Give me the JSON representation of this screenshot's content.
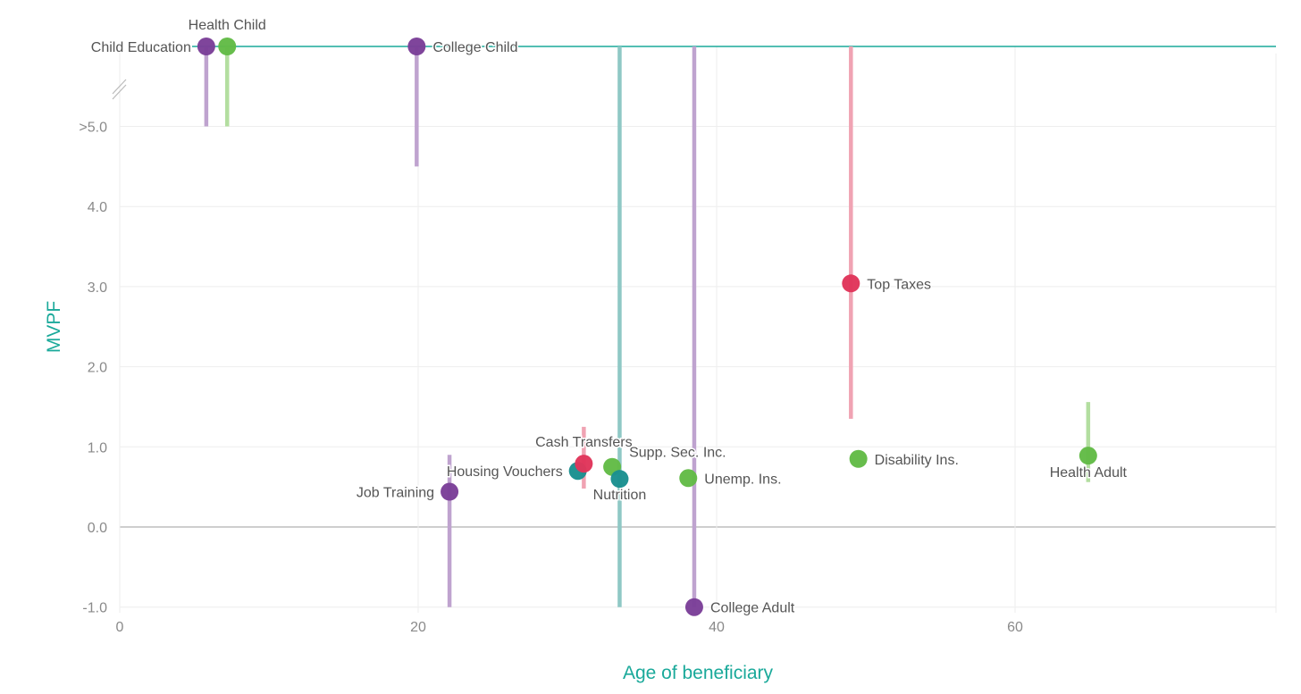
{
  "chart_data": {
    "type": "scatter",
    "title": "",
    "xlabel": "Age of beneficiary",
    "ylabel": "MVPF",
    "xlim": [
      0,
      77.5
    ],
    "ylim": [
      -1.0,
      5.0
    ],
    "x_ticks": [
      0,
      20,
      40,
      60
    ],
    "x_tick_labels": [
      "0",
      "20",
      "40",
      "60"
    ],
    "y_ticks": [
      -1.0,
      0.0,
      1.0,
      2.0,
      3.0,
      4.0,
      5.0
    ],
    "y_tick_labels": [
      "-1.0",
      "0.0",
      "1.0",
      "2.0",
      "3.0",
      "4.0",
      ">5.0"
    ],
    "grid": true,
    "infinity_line_label": "∞ (top line, broken axis above >5.0)",
    "colors": {
      "purple": "#7b3f98",
      "green": "#62bb46",
      "teal": "#1a9090",
      "red": "#e0355a",
      "axis_title": "#1aa99a",
      "top_line": "#1aa99a"
    },
    "points": [
      {
        "label": "Child Education",
        "age": 5.8,
        "mvpf": "inf",
        "ci": [
          5.0,
          "inf"
        ],
        "color": "purple",
        "label_pos": "left"
      },
      {
        "label": "Health Child",
        "age": 7.2,
        "mvpf": "inf",
        "ci": [
          5.0,
          "inf"
        ],
        "color": "green",
        "label_pos": "top"
      },
      {
        "label": "College Child",
        "age": 19.9,
        "mvpf": "inf",
        "ci": [
          4.5,
          "inf"
        ],
        "color": "purple",
        "label_pos": "right"
      },
      {
        "label": "Job Training",
        "age": 22.1,
        "mvpf": 0.44,
        "ci": [
          -1.0,
          0.9
        ],
        "color": "purple",
        "label_pos": "left"
      },
      {
        "label": "Housing Vouchers",
        "age": 30.7,
        "mvpf": 0.7,
        "ci": null,
        "color": "teal",
        "label_pos": "left"
      },
      {
        "label": "Cash Transfers",
        "age": 31.1,
        "mvpf": 0.79,
        "ci": [
          0.48,
          1.25
        ],
        "color": "red",
        "label_pos": "top"
      },
      {
        "label": "Supp. Sec. Inc.",
        "age": 33.0,
        "mvpf": 0.75,
        "ci": null,
        "color": "green",
        "label_pos": "top-right"
      },
      {
        "label": "Nutrition",
        "age": 33.5,
        "mvpf": 0.6,
        "ci": [
          -1.0,
          "inf"
        ],
        "color": "teal",
        "label_pos": "bottom"
      },
      {
        "label": "Unemp. Ins.",
        "age": 38.1,
        "mvpf": 0.61,
        "ci": null,
        "color": "green",
        "label_pos": "right"
      },
      {
        "label": "College Adult",
        "age": 38.5,
        "mvpf": -1.0,
        "ci": [
          -1.0,
          "inf"
        ],
        "color": "purple",
        "label_pos": "right"
      },
      {
        "label": "Top Taxes",
        "age": 49.0,
        "mvpf": 3.04,
        "ci": [
          1.35,
          "inf"
        ],
        "color": "red",
        "label_pos": "right"
      },
      {
        "label": "Disability Ins.",
        "age": 49.5,
        "mvpf": 0.85,
        "ci": null,
        "color": "green",
        "label_pos": "right"
      },
      {
        "label": "Health Adult",
        "age": 64.9,
        "mvpf": 0.89,
        "ci": [
          0.56,
          1.56
        ],
        "color": "green",
        "label_pos": "bottom"
      }
    ]
  }
}
